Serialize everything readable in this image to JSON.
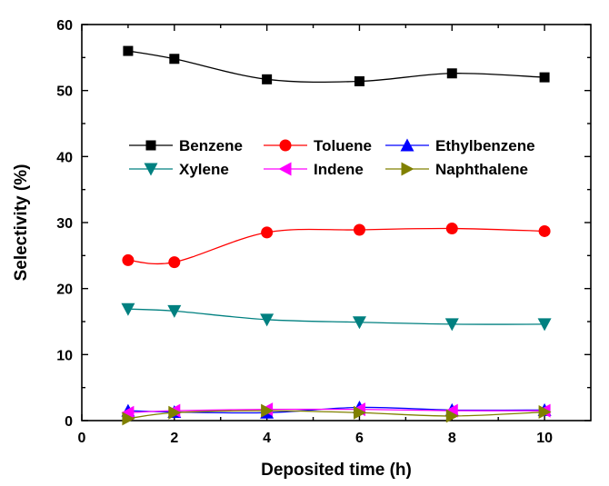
{
  "chart_data": {
    "type": "line",
    "xlabel": "Deposited time (h)",
    "ylabel": "Selectivity (%)",
    "xlim": [
      0,
      11
    ],
    "ylim": [
      0,
      60
    ],
    "xticks": [
      0,
      2,
      4,
      6,
      8,
      10
    ],
    "yticks": [
      0,
      10,
      20,
      30,
      40,
      50,
      60
    ],
    "x": [
      1,
      2,
      4,
      6,
      8,
      10
    ],
    "legend_position": "upper-middle",
    "grid": false,
    "series": [
      {
        "name": "Benzene",
        "values": [
          56.0,
          54.8,
          51.7,
          51.4,
          52.6,
          52.0
        ],
        "color": "#000000",
        "marker": "square"
      },
      {
        "name": "Toluene",
        "values": [
          24.3,
          24.0,
          28.5,
          28.9,
          29.1,
          28.7
        ],
        "color": "#ff0000",
        "marker": "circle"
      },
      {
        "name": "Ethylbenzene",
        "values": [
          1.5,
          1.3,
          1.2,
          2.0,
          1.6,
          1.6
        ],
        "color": "#0000ff",
        "marker": "triangle-up"
      },
      {
        "name": "Xylene",
        "values": [
          16.9,
          16.6,
          15.3,
          14.9,
          14.6,
          14.6
        ],
        "color": "#008080",
        "marker": "triangle-down"
      },
      {
        "name": "Indene",
        "values": [
          1.2,
          1.5,
          1.7,
          1.7,
          1.5,
          1.5
        ],
        "color": "#ff00ff",
        "marker": "triangle-left"
      },
      {
        "name": "Naphthalene",
        "values": [
          0.3,
          1.2,
          1.5,
          1.2,
          0.7,
          1.3
        ],
        "color": "#808000",
        "marker": "triangle-right"
      }
    ]
  }
}
